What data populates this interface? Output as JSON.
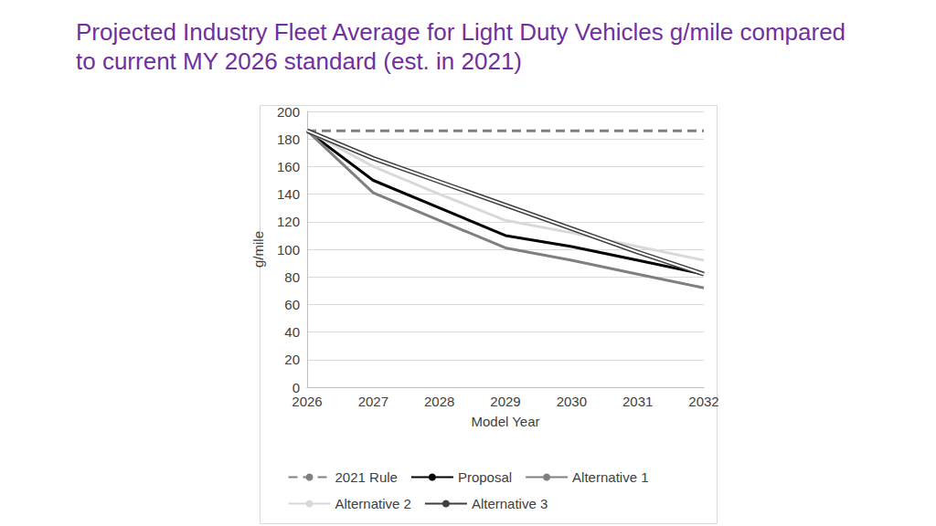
{
  "chart_data": {
    "type": "line",
    "title": "Projected Industry Fleet Average for Light Duty Vehicles g/mile compared to current MY 2026 standard (est. in 2021)",
    "x_label": "Model Year",
    "y_label": "g/mile",
    "x": [
      2026,
      2027,
      2028,
      2029,
      2030,
      2031,
      2032
    ],
    "xlim": [
      2026,
      2032
    ],
    "xticks": [
      2026,
      2027,
      2028,
      2029,
      2030,
      2031,
      2032
    ],
    "ylim": [
      0,
      200
    ],
    "yticks": [
      0,
      20,
      40,
      60,
      80,
      100,
      120,
      140,
      160,
      180,
      200
    ],
    "grid": true,
    "legend": "bottom",
    "series": [
      {
        "name": "2021 Rule",
        "color": "#808080",
        "line_style": "dashed",
        "values": [
          186,
          186,
          186,
          186,
          186,
          186,
          186
        ]
      },
      {
        "name": "Proposal",
        "color": "#000000",
        "line_style": "solid",
        "values": [
          186,
          150,
          130,
          110,
          102,
          92,
          82
        ]
      },
      {
        "name": "Alternative 1",
        "color": "#7f7f7f",
        "line_style": "solid",
        "values": [
          186,
          141,
          121,
          101,
          92,
          82,
          72
        ]
      },
      {
        "name": "Alternative 2",
        "color": "#d9d9d9",
        "line_style": "solid",
        "values": [
          186,
          160,
          140,
          121,
          112,
          102,
          92
        ]
      },
      {
        "name": "Alternative 3",
        "color": "#404040",
        "line_style": "double",
        "values": [
          186,
          166,
          149,
          132,
          115,
          98,
          82
        ]
      }
    ]
  }
}
